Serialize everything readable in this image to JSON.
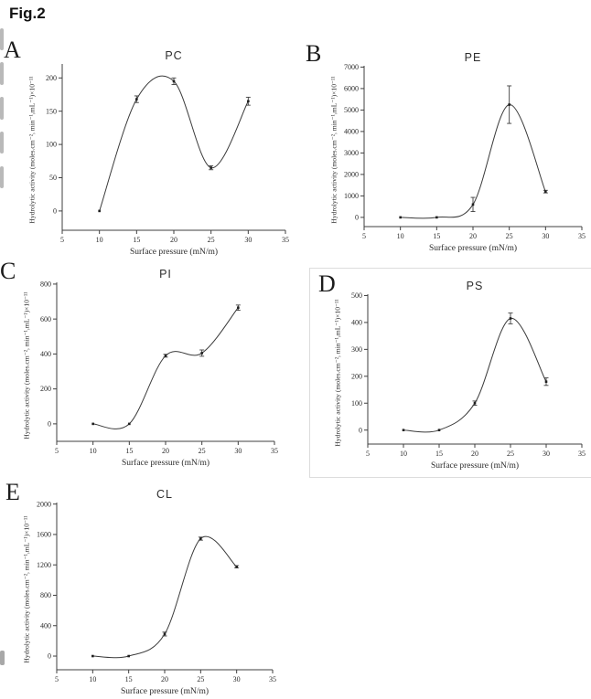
{
  "figure_label": "Fig.2",
  "colors": {
    "ink": "#1f1f1f",
    "axis": "#3f3f3f",
    "curve": "#3a3a3a",
    "panel_d_border": "#dcdcdc",
    "artifact_gray": "#b9b9b9"
  },
  "chart_data": [
    {
      "panel_letter": "A",
      "type": "line",
      "title": "PC",
      "xlabel": "Surface pressure (mN/m)",
      "ylabel": "Hydrolytic activity (moles.cm⁻², min⁻¹,mL⁻¹)×10⁻¹¹",
      "x": [
        10,
        15,
        20,
        25,
        30
      ],
      "y": [
        0,
        168,
        195,
        65,
        165
      ],
      "yerr": [
        0,
        5,
        5,
        3,
        6
      ],
      "xlim": [
        5,
        35
      ],
      "xticks": [
        5,
        10,
        15,
        20,
        25,
        30,
        35
      ],
      "ylim": [
        -29,
        221
      ],
      "yticks": [
        0,
        50,
        100,
        150,
        200
      ]
    },
    {
      "panel_letter": "B",
      "type": "line",
      "title": "PE",
      "xlabel": "Surface pressure (mN/m)",
      "ylabel": "Hydrolytic activity (moles.cm⁻², min⁻¹,mL⁻¹)×10⁻¹¹",
      "x": [
        10,
        15,
        20,
        25,
        30
      ],
      "y": [
        0,
        0,
        600,
        5250,
        1200
      ],
      "yerr": [
        0,
        0,
        330,
        875,
        60
      ],
      "xlim": [
        5,
        35
      ],
      "xticks": [
        5,
        10,
        15,
        20,
        25,
        30,
        35
      ],
      "ylim": [
        -430,
        7060
      ],
      "yticks": [
        0,
        1000,
        2000,
        3000,
        4000,
        5000,
        6000,
        7000
      ]
    },
    {
      "panel_letter": "C",
      "type": "line",
      "title": "PI",
      "xlabel": "Surface pressure (mN/m)",
      "ylabel": "Hydrolytic activity (moles.cm⁻², min⁻¹,mL⁻¹)×10⁻¹¹",
      "x": [
        10,
        15,
        20,
        25,
        30
      ],
      "y": [
        0,
        0,
        390,
        405,
        665
      ],
      "yerr": [
        0,
        0,
        8,
        18,
        15
      ],
      "xlim": [
        5,
        35
      ],
      "xticks": [
        5,
        10,
        15,
        20,
        25,
        30,
        35
      ],
      "ylim": [
        -100,
        810
      ],
      "yticks": [
        0,
        200,
        400,
        600,
        800
      ]
    },
    {
      "panel_letter": "D",
      "type": "line",
      "title": "PS",
      "xlabel": "Surface pressure (mN/m)",
      "ylabel": "Hydrolytic activity (moles.cm⁻², min⁻¹,mL⁻¹)×10⁻¹¹",
      "x": [
        10,
        15,
        20,
        25,
        30
      ],
      "y": [
        0,
        0,
        100,
        415,
        180
      ],
      "yerr": [
        0,
        0,
        8,
        20,
        14
      ],
      "xlim": [
        5,
        35
      ],
      "xticks": [
        5,
        10,
        15,
        20,
        25,
        30,
        35
      ],
      "ylim": [
        -52,
        505
      ],
      "yticks": [
        0,
        100,
        200,
        300,
        400,
        500
      ]
    },
    {
      "panel_letter": "E",
      "type": "line",
      "title": "CL",
      "xlabel": "Surface pressure (mN/m)",
      "ylabel": "Hydrolytic activity (moles.cm⁻², min⁻¹,mL⁻¹)×10⁻¹¹",
      "x": [
        10,
        15,
        20,
        25,
        30
      ],
      "y": [
        0,
        0,
        290,
        1545,
        1175
      ],
      "yerr": [
        0,
        0,
        25,
        20,
        15
      ],
      "xlim": [
        5,
        35
      ],
      "xticks": [
        5,
        10,
        15,
        20,
        25,
        30,
        35
      ],
      "ylim": [
        -180,
        2020
      ],
      "yticks": [
        0,
        400,
        800,
        1200,
        1600,
        2000
      ]
    }
  ]
}
